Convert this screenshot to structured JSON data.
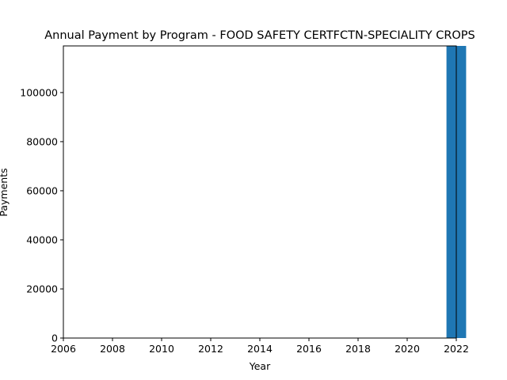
{
  "chart_data": {
    "type": "bar",
    "title": "Annual Payment by Program - FOOD SAFETY CERTFCTN-SPECIALITY CROPS",
    "xlabel": "Year",
    "ylabel": "Payments",
    "x": [
      2022
    ],
    "values": [
      119000
    ],
    "xlim": [
      2006,
      2022
    ],
    "ylim": [
      0,
      119000
    ],
    "xticks": [
      "2006",
      "2008",
      "2010",
      "2012",
      "2014",
      "2016",
      "2018",
      "2020",
      "2022"
    ],
    "yticks": [
      "0",
      "20000",
      "40000",
      "60000",
      "80000",
      "100000"
    ],
    "bar_color": "#1f77b4",
    "grid": false,
    "legend": "none"
  }
}
